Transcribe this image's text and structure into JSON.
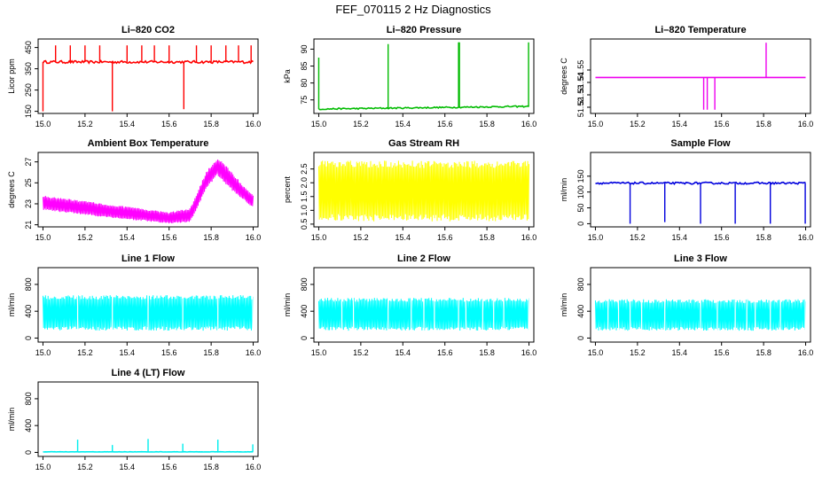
{
  "figure": {
    "title": "FEF_070115  2 Hz Diagnostics"
  },
  "chart_data": [
    {
      "id": "co2",
      "type": "line",
      "title": "Li–820 CO2",
      "ylabel": "Licor ppm",
      "color": "#ff0000",
      "xlim": [
        15.0,
        16.0
      ],
      "ylim": [
        140,
        490
      ],
      "xticks": [
        15.0,
        15.2,
        15.4,
        15.6,
        15.8,
        16.0
      ],
      "yticks": [
        150,
        250,
        350,
        450
      ],
      "x_tick_labels": [
        "15.0",
        "15.2",
        "15.4",
        "15.6",
        "15.8",
        "16.0"
      ],
      "y_tick_labels": [
        "150",
        "250",
        "350",
        "450"
      ],
      "baseline": 382,
      "noise": 6,
      "spikes": [
        {
          "x": 15.0,
          "y": 150
        },
        {
          "x": 15.06,
          "y": 460
        },
        {
          "x": 15.13,
          "y": 460
        },
        {
          "x": 15.2,
          "y": 460
        },
        {
          "x": 15.27,
          "y": 460
        },
        {
          "x": 15.33,
          "y": 150
        },
        {
          "x": 15.4,
          "y": 460
        },
        {
          "x": 15.47,
          "y": 460
        },
        {
          "x": 15.53,
          "y": 460
        },
        {
          "x": 15.6,
          "y": 460
        },
        {
          "x": 15.67,
          "y": 160
        },
        {
          "x": 15.73,
          "y": 460
        },
        {
          "x": 15.8,
          "y": 460
        },
        {
          "x": 15.87,
          "y": 460
        },
        {
          "x": 15.93,
          "y": 460
        },
        {
          "x": 15.99,
          "y": 460
        }
      ]
    },
    {
      "id": "pressure",
      "type": "line",
      "title": "Li–820 Pressure",
      "ylabel": "kPa",
      "color": "#00bb00",
      "xlim": [
        15.0,
        16.0
      ],
      "ylim": [
        71,
        93
      ],
      "xticks": [
        15.0,
        15.2,
        15.4,
        15.6,
        15.8,
        16.0
      ],
      "yticks": [
        75,
        80,
        85,
        90
      ],
      "x_tick_labels": [
        "15.0",
        "15.2",
        "15.4",
        "15.6",
        "15.8",
        "16.0"
      ],
      "y_tick_labels": [
        "75",
        "80",
        "85",
        "90"
      ],
      "baseline_start": 72.3,
      "baseline_end": 73.1,
      "noise": 0.2,
      "spikes": [
        {
          "x": 15.0,
          "y": 87.5
        },
        {
          "x": 15.33,
          "y": 91.5
        },
        {
          "x": 15.665,
          "y": 92
        },
        {
          "x": 15.667,
          "y": 92
        },
        {
          "x": 15.669,
          "y": 92
        },
        {
          "x": 15.998,
          "y": 92
        }
      ]
    },
    {
      "id": "temperature",
      "type": "line",
      "title": "Li–820 Temperature",
      "ylabel": "degrees C",
      "color": "#ee00ee",
      "xlim": [
        15.0,
        16.0
      ],
      "ylim": [
        51.515,
        51.575
      ],
      "xticks": [
        15.0,
        15.2,
        15.4,
        15.6,
        15.8,
        16.0
      ],
      "yticks": [
        51.52,
        51.53,
        51.54,
        51.55
      ],
      "x_tick_labels": [
        "15.0",
        "15.2",
        "15.4",
        "15.6",
        "15.8",
        "16.0"
      ],
      "y_tick_labels": [
        "51.52",
        "51.53",
        "51.54",
        "51.55"
      ],
      "baseline": 51.544,
      "spikes": [
        {
          "x": 15.515,
          "y": 51.518
        },
        {
          "x": 15.532,
          "y": 51.518
        },
        {
          "x": 15.568,
          "y": 51.518
        },
        {
          "x": 15.812,
          "y": 51.572
        }
      ]
    },
    {
      "id": "ambient",
      "type": "band",
      "title": "Ambient Box Temperature",
      "ylabel": "degrees C",
      "color": "#ff00ff",
      "xlim": [
        15.0,
        16.0
      ],
      "ylim": [
        20.8,
        27.9
      ],
      "xticks": [
        15.0,
        15.2,
        15.4,
        15.6,
        15.8,
        16.0
      ],
      "yticks": [
        21,
        23,
        25,
        27
      ],
      "x_tick_labels": [
        "15.0",
        "15.2",
        "15.4",
        "15.6",
        "15.8",
        "16.0"
      ],
      "y_tick_labels": [
        "21",
        "23",
        "25",
        "27"
      ],
      "upper": [
        [
          15.0,
          23.8
        ],
        [
          15.3,
          23.0
        ],
        [
          15.6,
          22.2
        ],
        [
          15.7,
          22.6
        ],
        [
          15.78,
          26.2
        ],
        [
          15.83,
          27.4
        ],
        [
          15.88,
          26.5
        ],
        [
          15.95,
          24.8
        ],
        [
          16.0,
          23.8
        ]
      ],
      "lower": [
        [
          15.0,
          22.4
        ],
        [
          15.3,
          21.7
        ],
        [
          15.6,
          21.1
        ],
        [
          15.7,
          21.2
        ],
        [
          15.78,
          24.5
        ],
        [
          15.83,
          25.7
        ],
        [
          15.88,
          24.6
        ],
        [
          15.95,
          23.4
        ],
        [
          16.0,
          22.6
        ]
      ]
    },
    {
      "id": "rh",
      "type": "band",
      "title": "Gas Stream RH",
      "ylabel": "percent",
      "color": "#ffff00",
      "xlim": [
        15.0,
        16.0
      ],
      "ylim": [
        0.4,
        3.1
      ],
      "xticks": [
        15.0,
        15.2,
        15.4,
        15.6,
        15.8,
        16.0
      ],
      "yticks": [
        0.5,
        1.0,
        1.5,
        2.0,
        2.5
      ],
      "x_tick_labels": [
        "15.0",
        "15.2",
        "15.4",
        "15.6",
        "15.8",
        "16.0"
      ],
      "y_tick_labels": [
        "0.5",
        "1.0",
        "1.5",
        "2.0",
        "2.5"
      ],
      "upper": [
        [
          15.0,
          2.8
        ],
        [
          16.0,
          2.8
        ]
      ],
      "lower": [
        [
          15.0,
          0.6
        ],
        [
          16.0,
          0.6
        ]
      ]
    },
    {
      "id": "sample",
      "type": "line",
      "title": "Sample Flow",
      "ylabel": "ml/min",
      "color": "#0000dd",
      "xlim": [
        15.0,
        16.0
      ],
      "ylim": [
        -10,
        225
      ],
      "xticks": [
        15.0,
        15.2,
        15.4,
        15.6,
        15.8,
        16.0
      ],
      "yticks": [
        0,
        50,
        100,
        150
      ],
      "x_tick_labels": [
        "15.0",
        "15.2",
        "15.4",
        "15.6",
        "15.8",
        "16.0"
      ],
      "y_tick_labels": [
        "0",
        "50",
        "100",
        "150"
      ],
      "baseline": 128,
      "noise": 3,
      "spikes": [
        {
          "x": 15.165,
          "y": 0
        },
        {
          "x": 15.33,
          "y": 5
        },
        {
          "x": 15.5,
          "y": 0
        },
        {
          "x": 15.665,
          "y": 0
        },
        {
          "x": 15.832,
          "y": 0
        },
        {
          "x": 15.998,
          "y": 0
        }
      ]
    },
    {
      "id": "line1",
      "type": "band",
      "title": "Line 1 Flow",
      "ylabel": "ml/min",
      "color": "#00ffff",
      "xlim": [
        15.0,
        16.0
      ],
      "ylim": [
        -60,
        1050
      ],
      "xticks": [
        15.0,
        15.2,
        15.4,
        15.6,
        15.8,
        16.0
      ],
      "yticks": [
        0,
        400,
        800
      ],
      "x_tick_labels": [
        "15.0",
        "15.2",
        "15.4",
        "15.6",
        "15.8",
        "16.0"
      ],
      "y_tick_labels": [
        "0",
        "400",
        "800"
      ],
      "upper": [
        [
          15.0,
          640
        ],
        [
          16.0,
          640
        ]
      ],
      "lower": [
        [
          15.0,
          110
        ],
        [
          16.0,
          110
        ]
      ],
      "gaps": [
        15.165,
        15.33,
        15.5,
        15.665,
        15.832,
        15.998
      ]
    },
    {
      "id": "line2",
      "type": "band",
      "title": "Line 2 Flow",
      "ylabel": "ml/min",
      "color": "#00ffff",
      "xlim": [
        15.0,
        16.0
      ],
      "ylim": [
        -60,
        1050
      ],
      "xticks": [
        15.0,
        15.2,
        15.4,
        15.6,
        15.8,
        16.0
      ],
      "yticks": [
        0,
        400,
        800
      ],
      "x_tick_labels": [
        "15.0",
        "15.2",
        "15.4",
        "15.6",
        "15.8",
        "16.0"
      ],
      "y_tick_labels": [
        "0",
        "400",
        "800"
      ],
      "upper": [
        [
          15.0,
          600
        ],
        [
          16.0,
          600
        ]
      ],
      "lower": [
        [
          15.0,
          110
        ],
        [
          16.0,
          110
        ]
      ],
      "gaps": [
        15.11,
        15.165,
        15.33,
        15.44,
        15.5,
        15.55,
        15.665,
        15.7,
        15.78,
        15.832,
        15.88,
        15.998
      ]
    },
    {
      "id": "line3",
      "type": "band",
      "title": "Line 3 Flow",
      "ylabel": "ml/min",
      "color": "#00ffff",
      "xlim": [
        15.0,
        16.0
      ],
      "ylim": [
        -60,
        1050
      ],
      "xticks": [
        15.0,
        15.2,
        15.4,
        15.6,
        15.8,
        16.0
      ],
      "yticks": [
        0,
        400,
        800
      ],
      "x_tick_labels": [
        "15.0",
        "15.2",
        "15.4",
        "15.6",
        "15.8",
        "16.0"
      ],
      "y_tick_labels": [
        "0",
        "400",
        "800"
      ],
      "upper": [
        [
          15.0,
          580
        ],
        [
          16.0,
          580
        ]
      ],
      "lower": [
        [
          15.0,
          110
        ],
        [
          16.0,
          110
        ]
      ],
      "gaps": [
        15.06,
        15.11,
        15.165,
        15.22,
        15.33,
        15.5,
        15.58,
        15.665,
        15.72,
        15.76,
        15.832,
        15.88,
        15.998
      ]
    },
    {
      "id": "line4",
      "type": "line",
      "title": "Line 4 (LT) Flow",
      "ylabel": "ml/min",
      "color": "#00eeee",
      "xlim": [
        15.0,
        16.0
      ],
      "ylim": [
        -60,
        1050
      ],
      "xticks": [
        15.0,
        15.2,
        15.4,
        15.6,
        15.8,
        16.0
      ],
      "yticks": [
        0,
        400,
        800
      ],
      "x_tick_labels": [
        "15.0",
        "15.2",
        "15.4",
        "15.6",
        "15.8",
        "16.0"
      ],
      "y_tick_labels": [
        "0",
        "400",
        "800"
      ],
      "baseline": 8,
      "noise": 2,
      "spikes": [
        {
          "x": 15.165,
          "y": 190
        },
        {
          "x": 15.33,
          "y": 110
        },
        {
          "x": 15.5,
          "y": 200
        },
        {
          "x": 15.665,
          "y": 130
        },
        {
          "x": 15.832,
          "y": 190
        },
        {
          "x": 15.998,
          "y": 120
        }
      ]
    }
  ]
}
